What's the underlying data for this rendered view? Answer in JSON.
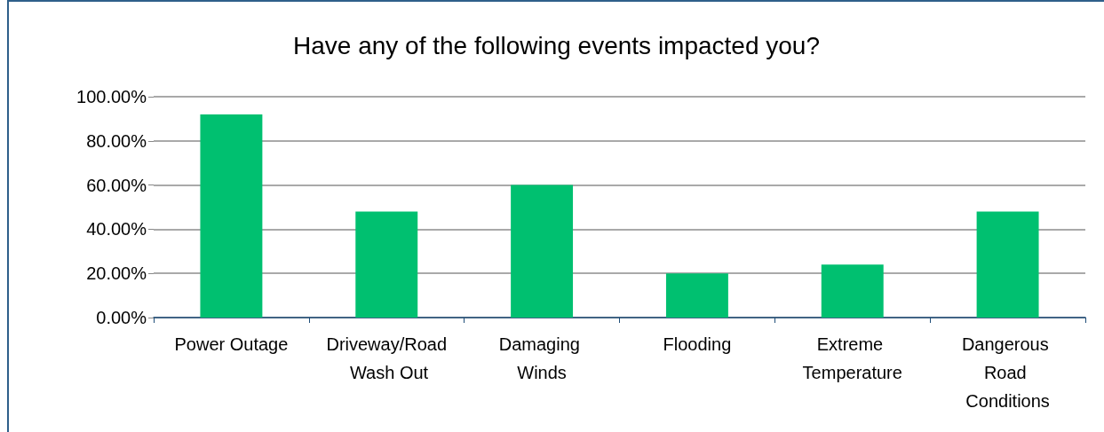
{
  "chart_data": {
    "type": "bar",
    "title": "Have any of the following events impacted you?",
    "categories": [
      "Power Outage",
      "Driveway/Road Wash Out",
      "Damaging Winds",
      "Flooding",
      "Extreme Temperature",
      "Dangerous Road Conditions"
    ],
    "values": [
      92,
      48,
      60,
      20,
      24,
      48
    ],
    "color": "#00c070",
    "ylim": [
      0,
      100
    ],
    "yticks": [
      {
        "value": 0,
        "label": "0.00%"
      },
      {
        "value": 20,
        "label": "20.00%"
      },
      {
        "value": 40,
        "label": "40.00%"
      },
      {
        "value": 60,
        "label": "60.00%"
      },
      {
        "value": 80,
        "label": "80.00%"
      },
      {
        "value": 100,
        "label": "100.00%"
      }
    ],
    "grid": "y"
  }
}
